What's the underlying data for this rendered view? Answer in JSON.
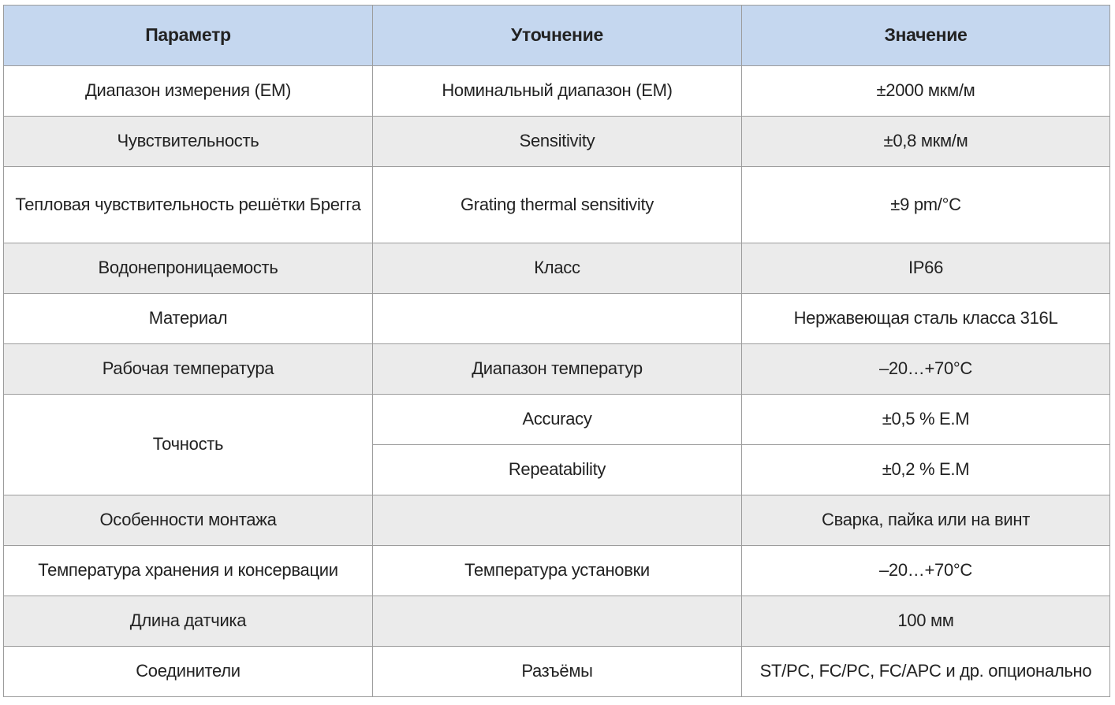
{
  "headers": {
    "param": "Параметр",
    "spec": "Уточнение",
    "value": "Значение"
  },
  "rows": {
    "r1": {
      "param": "Диапазон измерения (ЕМ)",
      "spec": "Номинальный диапазон (ЕМ)",
      "value": "±2000 мкм/м"
    },
    "r2": {
      "param": "Чувствительность",
      "spec": "Sensitivity",
      "value": "±0,8 мкм/м"
    },
    "r3": {
      "param": "Тепловая чувствительность решётки Брегга",
      "spec": "Grating thermal sensitivity",
      "value": "±9 pm/°C"
    },
    "r4": {
      "param": "Водонепроницаемость",
      "spec": "Класс",
      "value": "IP66"
    },
    "r5": {
      "param": "Материал",
      "spec": "",
      "value": "Нержавеющая сталь класса 316L"
    },
    "r6": {
      "param": "Рабочая температура",
      "spec": "Диапазон температур",
      "value": "–20…+70°C"
    },
    "r7": {
      "param": "Точность",
      "spec": "Accuracy",
      "value": "±0,5 % E.M",
      "spec2": "Repeatability",
      "value2": "±0,2 % E.M"
    },
    "r8": {
      "param": "Особенности монтажа",
      "spec": "",
      "value": "Сварка, пайка или на винт"
    },
    "r9": {
      "param": "Температура хранения и консервации",
      "spec": "Температура установки",
      "value": "–20…+70°C"
    },
    "r10": {
      "param": "Длина датчика",
      "spec": "",
      "value": "100 мм"
    },
    "r11": {
      "param": "Соединители",
      "spec": "Разъёмы",
      "value": "ST/PC, FC/PC, FC/APC и др. опционально"
    }
  }
}
